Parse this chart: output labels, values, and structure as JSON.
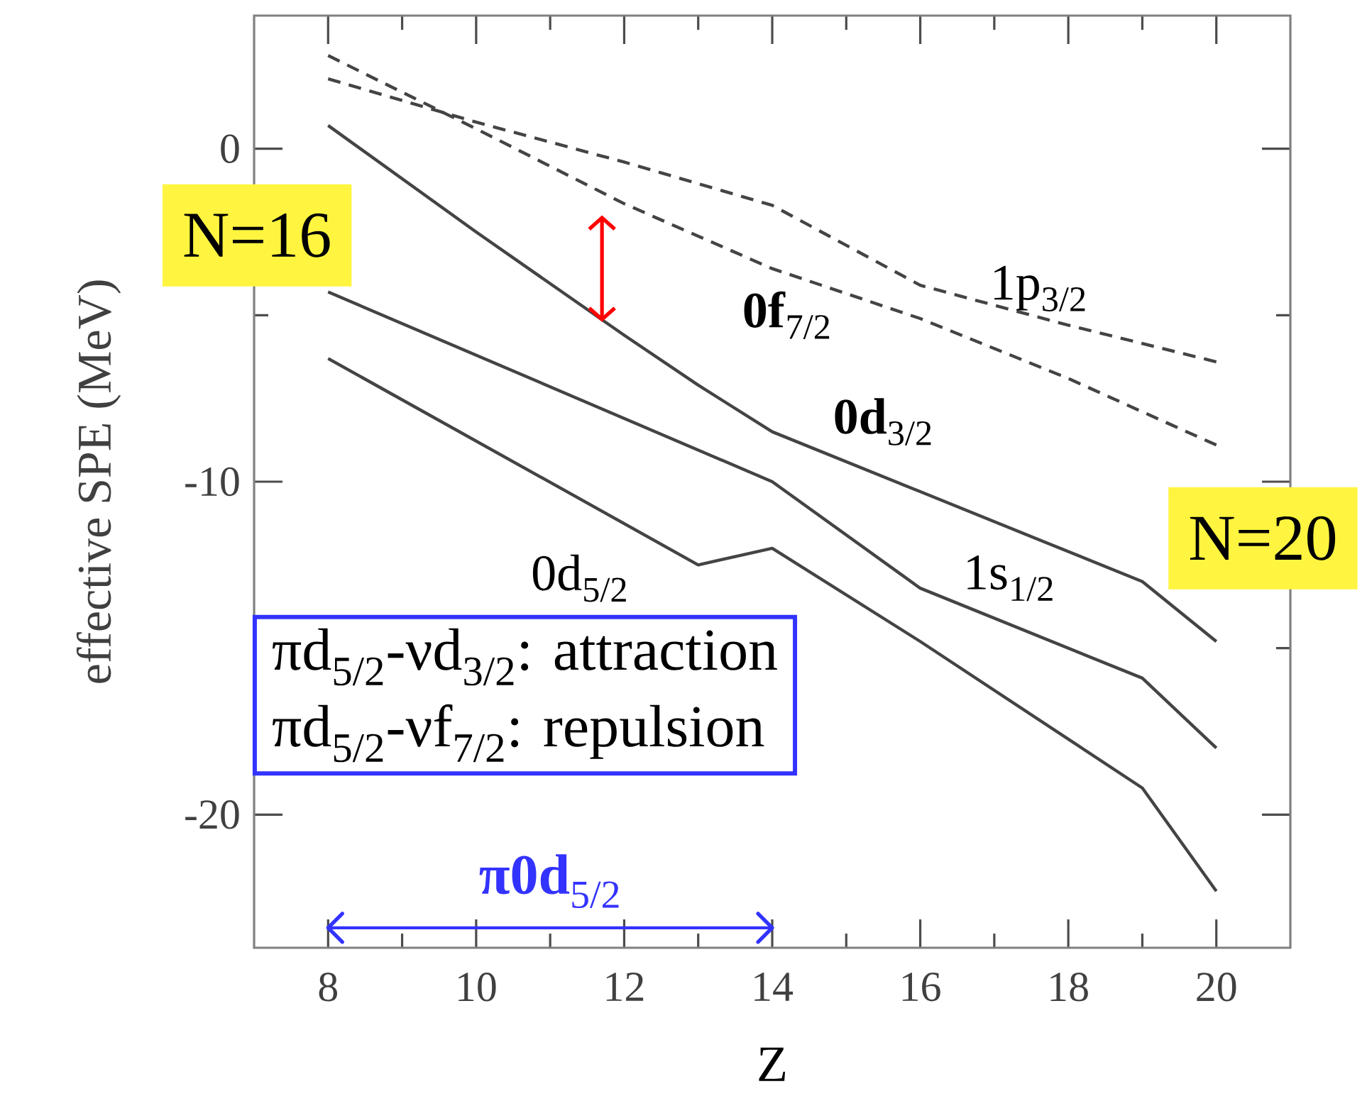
{
  "chart_data": {
    "type": "line",
    "xlabel": "Z",
    "ylabel": "effective SPE (MeV)",
    "xlim": [
      7,
      21
    ],
    "ylim": [
      -24,
      4
    ],
    "xticks": [
      8,
      {
        "value": 9,
        "label": null
      },
      10,
      {
        "value": 11,
        "label": null
      },
      12,
      {
        "value": 13,
        "label": null
      },
      14,
      {
        "value": 15,
        "label": null
      },
      16,
      {
        "value": 17,
        "label": null
      },
      18,
      {
        "value": 19,
        "label": null
      },
      20
    ],
    "yticks": [
      -20,
      {
        "value": -15,
        "label": null
      },
      -10,
      {
        "value": -5,
        "label": null
      },
      0
    ],
    "series": [
      {
        "color": "#444444",
        "line_style": "dashed",
        "x": [
          8,
          10,
          12,
          14,
          16,
          18,
          20
        ],
        "values": [
          2.1,
          0.8,
          -0.4,
          -1.7,
          -4.1,
          -5.3,
          -6.4
        ]
      },
      {
        "color": "#444444",
        "line_style": "dashed",
        "x": [
          8,
          10,
          12,
          14,
          16,
          18,
          20
        ],
        "values": [
          2.8,
          0.6,
          -1.65,
          -3.6,
          -5.1,
          -6.9,
          -8.9
        ]
      },
      {
        "color": "#444444",
        "line_style": "solid",
        "x": [
          8,
          10,
          12,
          13,
          14,
          16,
          18,
          19,
          20
        ],
        "values": [
          0.7,
          -2.5,
          -5.6,
          -7.1,
          -8.5,
          -10.3,
          -12.1,
          -13.0,
          -14.8
        ]
      },
      {
        "color": "#444444",
        "line_style": "solid",
        "x": [
          8,
          14,
          16,
          19,
          20
        ],
        "values": [
          -4.3,
          -10.0,
          -13.2,
          -15.9,
          -18.0
        ]
      },
      {
        "color": "#444444",
        "line_style": "solid",
        "x": [
          8,
          13,
          14,
          16,
          19,
          20
        ],
        "values": [
          -6.3,
          -12.5,
          -12.0,
          -14.8,
          -19.2,
          -22.3
        ]
      },
      {
        "name": "**π0d**$_{5/2}$",
        "color": "#3333ff",
        "line_style": "solid",
        "x": [
          8,
          14
        ],
        "values": [
          -23.4,
          -23.4
        ]
      }
    ],
    "annotations": [
      "1p$_{3/2}$",
      "**0f**$_{7/2}$",
      "**0d**$_{3/2}$",
      "1s$_{1/2}$",
      "0d$_{5/2}$",
      "N=16",
      "N=20",
      "πd$_{5/2}$-νd$_{3/2}$: attraction",
      "πd$_{5/2}$-νf$_{7/2}$:  repulsion"
    ]
  }
}
